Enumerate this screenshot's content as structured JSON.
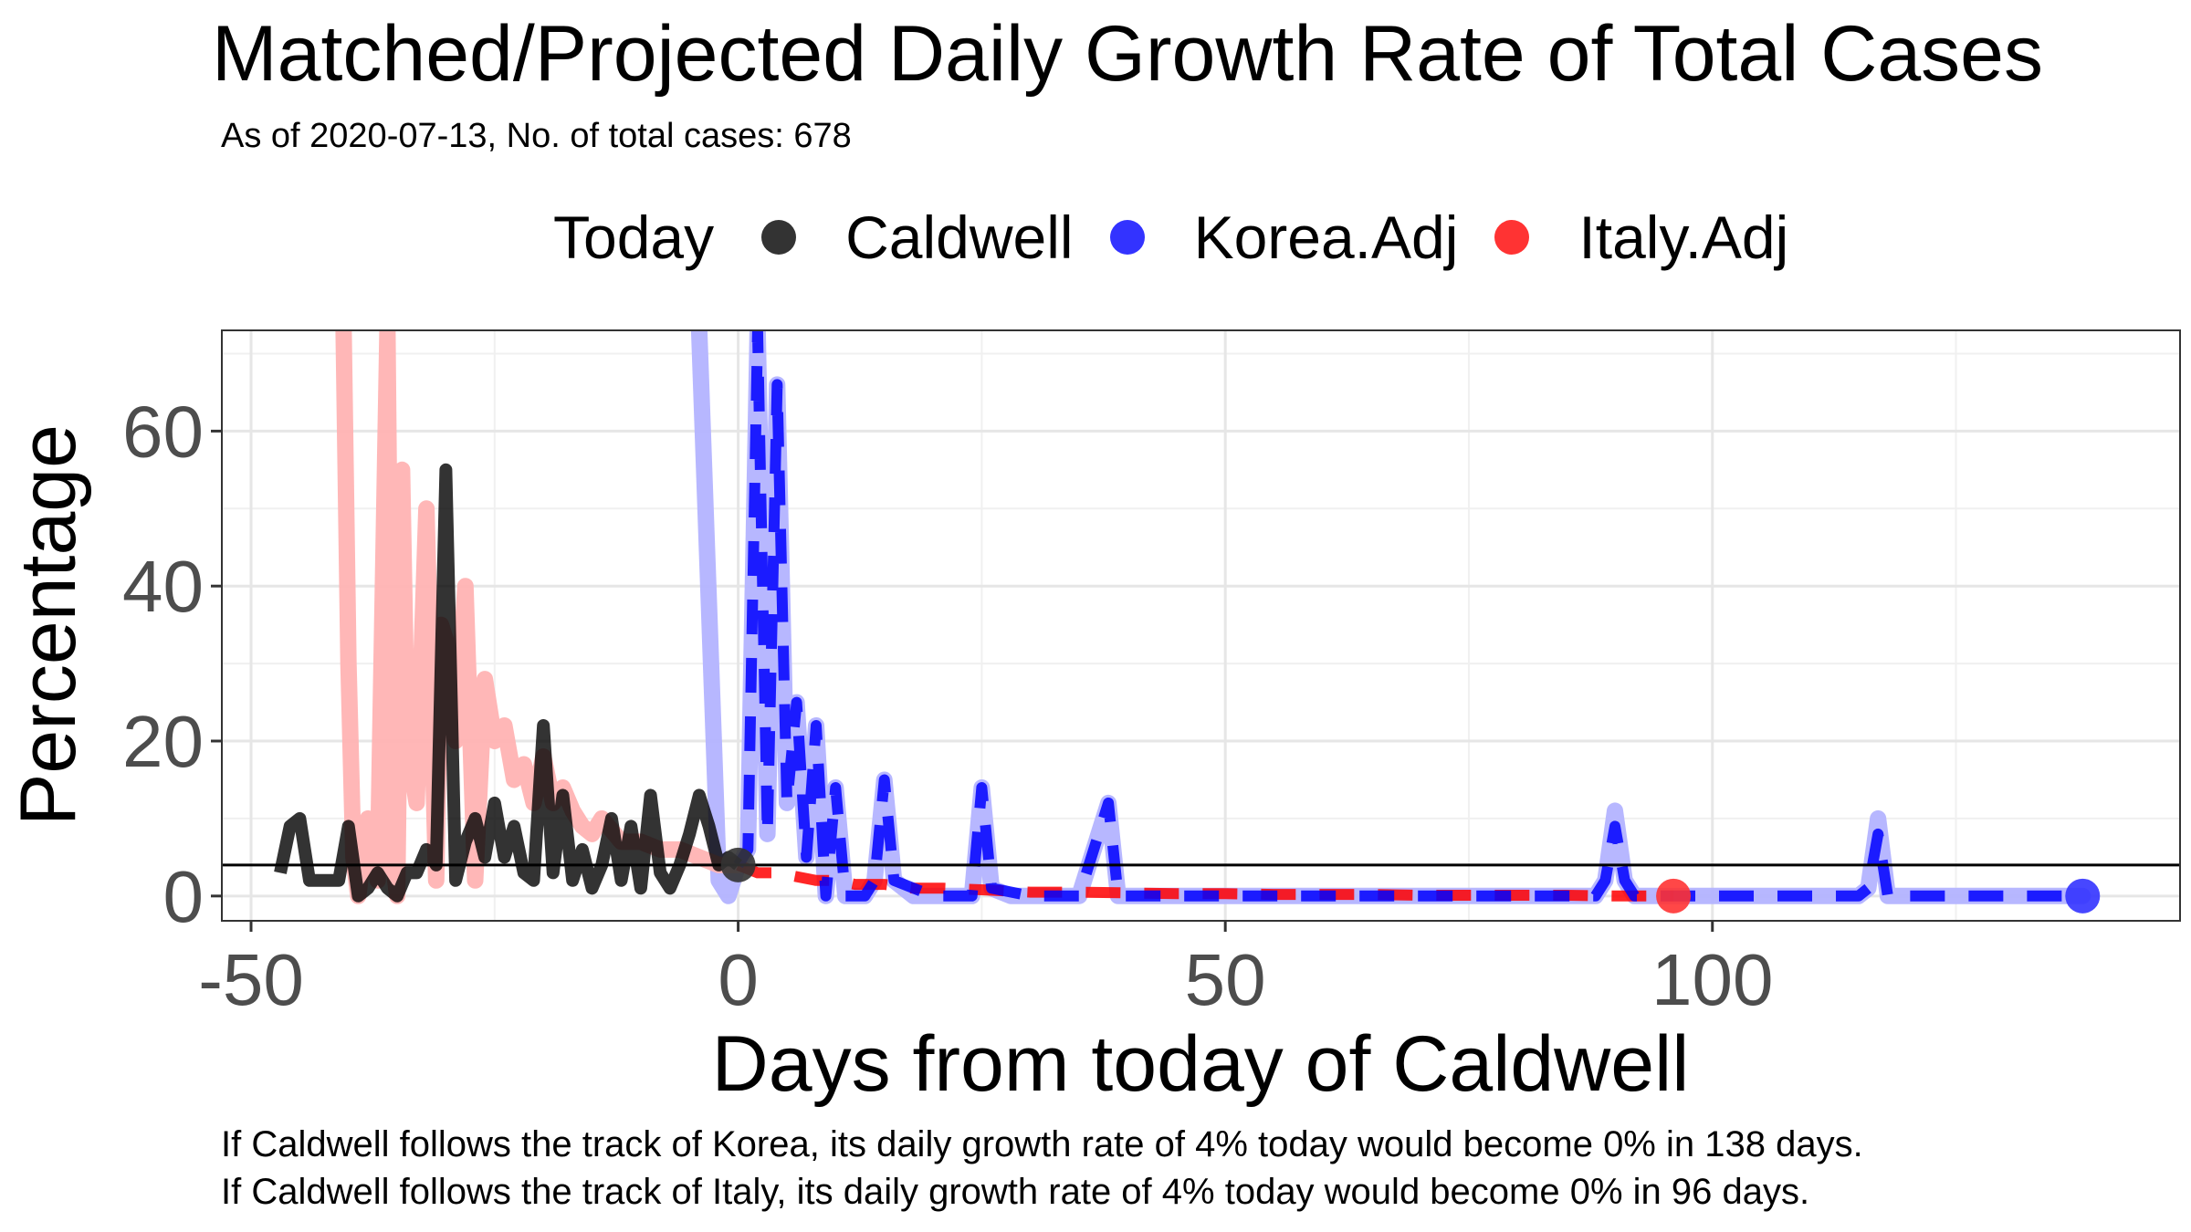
{
  "chart_data": {
    "type": "line",
    "title": "Matched/Projected Daily Growth Rate of Total Cases",
    "subtitle": "As of 2020-07-13, No. of total cases: 678",
    "xlabel": "Days from today of Caldwell",
    "ylabel": "Percentage",
    "xlim": [
      -53,
      148
    ],
    "ylim": [
      -3.2,
      73
    ],
    "xticks": [
      -50,
      0,
      50,
      100
    ],
    "yticks": [
      0,
      20,
      40,
      60
    ],
    "grid": true,
    "legend_position": "top",
    "legend_title": "Today",
    "today_rate": 4,
    "series": [
      {
        "name": "Caldwell",
        "color": "#000000",
        "style": "solid",
        "x": [
          -47,
          -46,
          -45,
          -44,
          -43,
          -42,
          -41,
          -40,
          -39,
          -38,
          -37,
          -36,
          -35,
          -34,
          -33,
          -32,
          -31,
          -30,
          -29,
          -28,
          -27,
          -26,
          -25,
          -24,
          -23,
          -22,
          -21,
          -20,
          -19,
          -18,
          -17,
          -16,
          -15,
          -14,
          -13,
          -12,
          -11,
          -10,
          -9,
          -8,
          -7,
          -6,
          -5,
          -4,
          -3,
          -2,
          -1,
          0
        ],
        "values": [
          3,
          9,
          10,
          2,
          2,
          2,
          2,
          9,
          0,
          1,
          3,
          1,
          0,
          3,
          3,
          6,
          4,
          55,
          2,
          7,
          10,
          5,
          12,
          5,
          9,
          3,
          2,
          22,
          3,
          13,
          2,
          6,
          1,
          4,
          10,
          2,
          9,
          1,
          13,
          3,
          1,
          4,
          8,
          13,
          9,
          4,
          5,
          4
        ]
      },
      {
        "name": "Korea.Adj",
        "color": "#0000ff",
        "style": "dashed",
        "x": [
          0,
          1,
          2,
          3,
          4,
          5,
          6,
          7,
          8,
          9,
          10,
          11,
          12,
          13,
          14,
          15,
          16,
          20,
          24,
          25,
          26,
          30,
          35,
          38,
          39,
          45,
          50,
          55,
          60,
          70,
          80,
          88,
          89,
          90,
          91,
          92,
          100,
          110,
          115,
          116,
          117,
          118,
          125,
          130,
          135,
          138
        ],
        "values": [
          4,
          6,
          73,
          8,
          66,
          12,
          25,
          5,
          22,
          0,
          14,
          0,
          0,
          0,
          2,
          15,
          2,
          0,
          0,
          14,
          1,
          0,
          0,
          12,
          0,
          0,
          0,
          0,
          0,
          0,
          0,
          0,
          2,
          9,
          2,
          0,
          0,
          0,
          0,
          1,
          8,
          0,
          0,
          0,
          0,
          0
        ]
      },
      {
        "name": "Italy.Adj",
        "color": "#ff0000",
        "style": "dashed",
        "x": [
          0,
          2,
          4,
          6,
          8,
          10,
          12,
          15,
          18,
          21,
          25,
          30,
          35,
          40,
          45,
          50,
          55,
          60,
          65,
          70,
          75,
          80,
          85,
          90,
          95,
          96
        ],
        "values": [
          4,
          3,
          3,
          2.5,
          2,
          2,
          1.5,
          1.5,
          1,
          1,
          0.8,
          0.5,
          0.5,
          0.4,
          0.3,
          0.3,
          0.2,
          0.2,
          0.2,
          0.1,
          0.1,
          0.1,
          0.1,
          0,
          0,
          0
        ]
      }
    ],
    "history": [
      {
        "name": "Korea",
        "color": "#b3b3ff",
        "x": [
          -4,
          -2,
          -1,
          0,
          1,
          2,
          3,
          4,
          5,
          6,
          7,
          8,
          9,
          10,
          11,
          12,
          13,
          14,
          15,
          16,
          18,
          20,
          22,
          24,
          25,
          26,
          28,
          30,
          35,
          38,
          39,
          45,
          50,
          55,
          60,
          70,
          80,
          88,
          89,
          90,
          91,
          92,
          100,
          110,
          115,
          116,
          117,
          118,
          125,
          130,
          135,
          138
        ],
        "values": [
          73,
          2,
          0,
          4,
          6,
          73,
          8,
          66,
          12,
          25,
          5,
          22,
          0,
          14,
          0,
          0,
          0,
          2,
          15,
          2,
          0,
          0,
          0,
          0,
          14,
          1,
          0,
          0,
          0,
          12,
          0,
          0,
          0,
          0,
          0,
          0,
          0,
          0,
          2,
          11,
          2,
          0,
          0,
          0,
          0,
          1,
          10,
          0,
          0,
          0,
          0,
          0
        ]
      },
      {
        "name": "Italy",
        "color": "#ffb3b3",
        "x": [
          -40.5,
          -40,
          -39.5,
          -39,
          -38,
          -37,
          -36,
          -35.5,
          -35,
          -34.5,
          -34,
          -33,
          -32,
          -31,
          -30.5,
          -30,
          -29,
          -28,
          -27,
          -26,
          -25,
          -24,
          -23,
          -22,
          -21,
          -20,
          -19,
          -18,
          -17,
          -16,
          -15,
          -14,
          -12,
          -10,
          -8,
          -6,
          -4,
          -2,
          0
        ],
        "values": [
          73,
          30,
          5,
          0,
          10,
          2,
          73,
          5,
          0,
          55,
          20,
          12,
          50,
          2,
          35,
          33,
          20,
          40,
          2,
          28,
          20,
          22,
          15,
          17,
          12,
          18,
          12,
          14,
          11,
          9,
          8,
          10,
          7,
          7,
          6,
          6,
          5,
          4,
          4
        ]
      }
    ],
    "today_points": [
      {
        "series": "Caldwell",
        "x": 0,
        "y": 4
      },
      {
        "series": "Italy.Adj",
        "x": 96,
        "y": 0
      },
      {
        "series": "Korea.Adj",
        "x": 138,
        "y": 0
      }
    ]
  },
  "legend": {
    "title": "Today",
    "items": [
      {
        "label": "Caldwell",
        "color": "#333333"
      },
      {
        "label": "Korea.Adj",
        "color": "#3333ff"
      },
      {
        "label": "Italy.Adj",
        "color": "#ff3333"
      }
    ]
  },
  "notes": {
    "line1": "If Caldwell follows the track of Korea, its daily growth rate of 4% today would become 0% in 138 days.",
    "line2": "If Caldwell follows the track of Italy, its daily growth rate of 4% today would become 0% in 96 days."
  }
}
